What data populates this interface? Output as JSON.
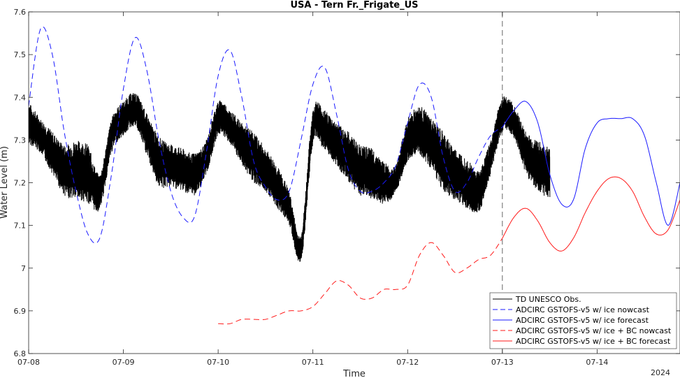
{
  "chart_data": {
    "type": "line",
    "title": "USA - Tern Fr._Frigate_US",
    "xlabel": "Time",
    "ylabel": "Water Level (m)",
    "year_label": "2024",
    "xlim": [
      "07-08 00:00",
      "07-14 21:00"
    ],
    "ylim": [
      6.8,
      7.6
    ],
    "x_ticks": [
      "07-08",
      "07-09",
      "07-10",
      "07-11",
      "07-12",
      "07-13",
      "07-14"
    ],
    "y_ticks": [
      6.8,
      6.9,
      7,
      7.1,
      7.2,
      7.3,
      7.4,
      7.5,
      7.6
    ],
    "forecast_start_marker": "07-13 00:00",
    "legend_position": "bottom-right",
    "series": [
      {
        "name": "TD UNESCO Obs.",
        "color": "#000000",
        "style": "solid-noisy",
        "x": [
          "07-08 00:00",
          "07-08 03:00",
          "07-08 06:00",
          "07-08 09:00",
          "07-08 12:00",
          "07-08 15:00",
          "07-08 18:00",
          "07-08 21:00",
          "07-09 00:00",
          "07-09 03:00",
          "07-09 06:00",
          "07-09 09:00",
          "07-09 12:00",
          "07-09 15:00",
          "07-09 18:00",
          "07-09 21:00",
          "07-10 00:00",
          "07-10 03:00",
          "07-10 06:00",
          "07-10 09:00",
          "07-10 12:00",
          "07-10 15:00",
          "07-10 18:00",
          "07-10 21:00",
          "07-11 00:00",
          "07-11 03:00",
          "07-11 06:00",
          "07-11 09:00",
          "07-11 12:00",
          "07-11 15:00",
          "07-11 18:00",
          "07-11 21:00",
          "07-12 00:00",
          "07-12 03:00",
          "07-12 06:00",
          "07-12 09:00",
          "07-12 12:00",
          "07-12 15:00",
          "07-12 18:00",
          "07-12 21:00",
          "07-13 00:00",
          "07-13 03:00",
          "07-13 06:00",
          "07-13 09:00",
          "07-13 12:00"
        ],
        "y": [
          7.34,
          7.31,
          7.27,
          7.23,
          7.23,
          7.22,
          7.18,
          7.31,
          7.35,
          7.37,
          7.31,
          7.25,
          7.24,
          7.23,
          7.22,
          7.26,
          7.35,
          7.33,
          7.29,
          7.26,
          7.23,
          7.19,
          7.14,
          7.05,
          7.33,
          7.32,
          7.29,
          7.26,
          7.23,
          7.22,
          7.2,
          7.21,
          7.3,
          7.32,
          7.29,
          7.25,
          7.22,
          7.2,
          7.18,
          7.26,
          7.36,
          7.34,
          7.27,
          7.24,
          7.22
        ],
        "noise_band": [
          0.05,
          0.04,
          0.05,
          0.06,
          0.07,
          0.07,
          0.04,
          0.04,
          0.04,
          0.04,
          0.05,
          0.06,
          0.05,
          0.05,
          0.05,
          0.04,
          0.04,
          0.04,
          0.05,
          0.06,
          0.05,
          0.05,
          0.04,
          0.03,
          0.04,
          0.05,
          0.05,
          0.06,
          0.06,
          0.06,
          0.05,
          0.03,
          0.05,
          0.06,
          0.06,
          0.07,
          0.06,
          0.06,
          0.05,
          0.04,
          0.04,
          0.04,
          0.05,
          0.06,
          0.06
        ]
      },
      {
        "name": "ADCIRC GSTOFS-v5 w/ ice nowcast",
        "color": "#1a1aff",
        "style": "dashed",
        "x": [
          "07-08 00:00",
          "07-08 03:00",
          "07-08 06:00",
          "07-08 09:00",
          "07-08 12:00",
          "07-08 15:00",
          "07-08 18:00",
          "07-08 21:00",
          "07-09 00:00",
          "07-09 03:00",
          "07-09 06:00",
          "07-09 09:00",
          "07-09 12:00",
          "07-09 15:00",
          "07-09 18:00",
          "07-09 21:00",
          "07-10 00:00",
          "07-10 03:00",
          "07-10 06:00",
          "07-10 09:00",
          "07-10 12:00",
          "07-10 15:00",
          "07-10 18:00",
          "07-10 21:00",
          "07-11 00:00",
          "07-11 03:00",
          "07-11 06:00",
          "07-11 09:00",
          "07-11 12:00",
          "07-11 15:00",
          "07-11 18:00",
          "07-11 21:00",
          "07-12 00:00",
          "07-12 03:00",
          "07-12 06:00",
          "07-12 09:00",
          "07-12 12:00",
          "07-12 15:00",
          "07-12 18:00",
          "07-12 21:00",
          "07-13 00:00"
        ],
        "y": [
          7.38,
          7.56,
          7.5,
          7.32,
          7.18,
          7.08,
          7.07,
          7.22,
          7.42,
          7.54,
          7.46,
          7.3,
          7.18,
          7.12,
          7.12,
          7.27,
          7.45,
          7.51,
          7.4,
          7.25,
          7.19,
          7.16,
          7.18,
          7.3,
          7.43,
          7.47,
          7.36,
          7.23,
          7.18,
          7.18,
          7.2,
          7.24,
          7.34,
          7.43,
          7.4,
          7.26,
          7.18,
          7.2,
          7.26,
          7.31,
          7.33
        ]
      },
      {
        "name": "ADCIRC GSTOFS-v5 w/ ice forecast",
        "color": "#1a1aff",
        "style": "solid",
        "x": [
          "07-13 00:00",
          "07-13 03:00",
          "07-13 06:00",
          "07-13 09:00",
          "07-13 12:00",
          "07-13 15:00",
          "07-13 18:00",
          "07-13 21:00",
          "07-14 00:00",
          "07-14 03:00",
          "07-14 06:00",
          "07-14 09:00",
          "07-14 12:00",
          "07-14 15:00",
          "07-14 18:00",
          "07-14 21:00"
        ],
        "y": [
          7.33,
          7.37,
          7.39,
          7.34,
          7.22,
          7.15,
          7.16,
          7.28,
          7.34,
          7.35,
          7.35,
          7.35,
          7.31,
          7.2,
          7.1,
          7.2
        ]
      },
      {
        "name": "ADCIRC GSTOFS-v5 w/ ice + BC nowcast",
        "color": "#ff1a1a",
        "style": "dashed",
        "x": [
          "07-10 00:00",
          "07-10 03:00",
          "07-10 06:00",
          "07-10 09:00",
          "07-10 12:00",
          "07-10 15:00",
          "07-10 18:00",
          "07-10 21:00",
          "07-11 00:00",
          "07-11 03:00",
          "07-11 06:00",
          "07-11 09:00",
          "07-11 12:00",
          "07-11 15:00",
          "07-11 18:00",
          "07-11 21:00",
          "07-12 00:00",
          "07-12 03:00",
          "07-12 06:00",
          "07-12 09:00",
          "07-12 12:00",
          "07-12 15:00",
          "07-12 18:00",
          "07-12 21:00",
          "07-13 00:00"
        ],
        "y": [
          6.87,
          6.87,
          6.88,
          6.88,
          6.88,
          6.89,
          6.9,
          6.9,
          6.91,
          6.94,
          6.97,
          6.96,
          6.93,
          6.93,
          6.95,
          6.95,
          6.96,
          7.03,
          7.06,
          7.03,
          6.99,
          7.0,
          7.02,
          7.03,
          7.07
        ]
      },
      {
        "name": "ADCIRC GSTOFS-v5 w/ ice + BC forecast",
        "color": "#ff1a1a",
        "style": "solid",
        "x": [
          "07-13 00:00",
          "07-13 03:00",
          "07-13 06:00",
          "07-13 09:00",
          "07-13 12:00",
          "07-13 15:00",
          "07-13 18:00",
          "07-13 21:00",
          "07-14 00:00",
          "07-14 03:00",
          "07-14 06:00",
          "07-14 09:00",
          "07-14 12:00",
          "07-14 15:00",
          "07-14 18:00",
          "07-14 21:00"
        ],
        "y": [
          7.07,
          7.12,
          7.14,
          7.11,
          7.06,
          7.04,
          7.07,
          7.13,
          7.18,
          7.21,
          7.21,
          7.18,
          7.12,
          7.08,
          7.09,
          7.16
        ]
      }
    ]
  }
}
